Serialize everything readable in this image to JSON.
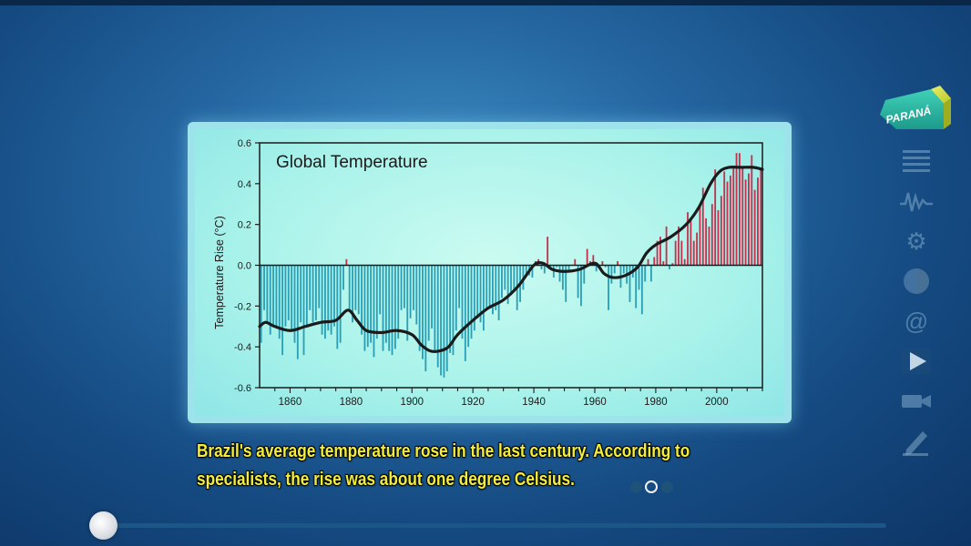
{
  "caption": {
    "line1": "Brazil's average temperature rose in the last century. According to",
    "line2": "specialists, the rise was about one degree Celsius."
  },
  "pagination": {
    "total": 3,
    "active": 1
  },
  "progress": {
    "value": 0.0
  },
  "logo": {
    "text": "PARANÁ"
  },
  "sidebar": {
    "icons": [
      "list-icon",
      "waveform-icon",
      "gear-icon",
      "globe-icon",
      "at-sign-icon",
      "play-icon",
      "camera-icon",
      "pencil-icon"
    ]
  },
  "colors": {
    "positive_bar": "#c8304c",
    "negative_bar": "#2a9fb6",
    "trend_line": "#1b1b1b",
    "caption": "#f4ee3a"
  },
  "chart_data": {
    "type": "bar",
    "title": "Global Temperature",
    "xlabel": "",
    "ylabel": "Temperature Rise (°C)",
    "xlim": [
      1850,
      2015
    ],
    "ylim": [
      -0.6,
      0.6
    ],
    "xticks": [
      1860,
      1880,
      1900,
      1920,
      1940,
      1960,
      1980,
      2000
    ],
    "yticks": [
      "-0.6",
      "-0.4",
      "-0.2",
      "0.0",
      "0.2",
      "0.4",
      "0.6"
    ],
    "grid": false,
    "annual_anomaly": {
      "years_start": 1850,
      "values": [
        -0.38,
        -0.22,
        -0.28,
        -0.34,
        -0.29,
        -0.31,
        -0.36,
        -0.44,
        -0.3,
        -0.27,
        -0.32,
        -0.38,
        -0.46,
        -0.28,
        -0.44,
        -0.3,
        -0.22,
        -0.28,
        -0.27,
        -0.21,
        -0.34,
        -0.36,
        -0.32,
        -0.34,
        -0.3,
        -0.41,
        -0.38,
        -0.12,
        0.03,
        -0.22,
        -0.28,
        -0.22,
        -0.24,
        -0.34,
        -0.42,
        -0.4,
        -0.38,
        -0.45,
        -0.36,
        -0.24,
        -0.42,
        -0.38,
        -0.42,
        -0.44,
        -0.41,
        -0.36,
        -0.22,
        -0.21,
        -0.37,
        -0.26,
        -0.22,
        -0.29,
        -0.42,
        -0.46,
        -0.52,
        -0.37,
        -0.31,
        -0.43,
        -0.5,
        -0.54,
        -0.55,
        -0.52,
        -0.43,
        -0.44,
        -0.32,
        -0.21,
        -0.36,
        -0.47,
        -0.4,
        -0.36,
        -0.32,
        -0.26,
        -0.28,
        -0.32,
        -0.21,
        -0.2,
        -0.24,
        -0.22,
        -0.27,
        -0.16,
        -0.12,
        -0.19,
        -0.14,
        -0.12,
        -0.22,
        -0.18,
        -0.12,
        -0.04,
        -0.05,
        -0.06,
        0.02,
        0.03,
        -0.02,
        -0.04,
        0.14,
        -0.02,
        -0.06,
        -0.01,
        -0.08,
        -0.12,
        -0.18,
        -0.03,
        0.0,
        0.03,
        -0.16,
        -0.2,
        -0.09,
        0.08,
        0.02,
        0.05,
        -0.03,
        -0.01,
        0.02,
        -0.01,
        -0.22,
        -0.09,
        -0.04,
        0.02,
        -0.11,
        -0.04,
        -0.09,
        -0.18,
        -0.06,
        -0.21,
        -0.12,
        -0.24,
        -0.08,
        0.03,
        -0.08,
        0.04,
        0.12,
        0.14,
        0.02,
        0.19,
        -0.02,
        0.01,
        0.12,
        0.19,
        0.12,
        0.03,
        0.26,
        0.22,
        0.12,
        0.16,
        0.29,
        0.38,
        0.23,
        0.19,
        0.3,
        0.47,
        0.27,
        0.34,
        0.46,
        0.41,
        0.44,
        0.48,
        0.55,
        0.55,
        0.48,
        0.42,
        0.45,
        0.54,
        0.37,
        0.43,
        0.48
      ]
    },
    "smoothed_trend": {
      "x": [
        1850,
        1852,
        1855,
        1860,
        1865,
        1870,
        1875,
        1879,
        1882,
        1885,
        1890,
        1895,
        1900,
        1903,
        1906,
        1909,
        1912,
        1915,
        1920,
        1925,
        1930,
        1935,
        1940,
        1943,
        1946,
        1950,
        1955,
        1960,
        1963,
        1966,
        1970,
        1974,
        1977,
        1980,
        1985,
        1990,
        1994,
        1998,
        2001,
        2004,
        2008,
        2012,
        2015
      ],
      "y": [
        -0.3,
        -0.28,
        -0.3,
        -0.32,
        -0.3,
        -0.28,
        -0.27,
        -0.22,
        -0.27,
        -0.32,
        -0.33,
        -0.32,
        -0.34,
        -0.39,
        -0.42,
        -0.42,
        -0.4,
        -0.34,
        -0.27,
        -0.21,
        -0.17,
        -0.1,
        0.0,
        0.01,
        -0.02,
        -0.03,
        -0.02,
        0.01,
        -0.04,
        -0.06,
        -0.05,
        -0.01,
        0.06,
        0.1,
        0.14,
        0.2,
        0.28,
        0.4,
        0.46,
        0.48,
        0.48,
        0.48,
        0.47
      ]
    }
  }
}
